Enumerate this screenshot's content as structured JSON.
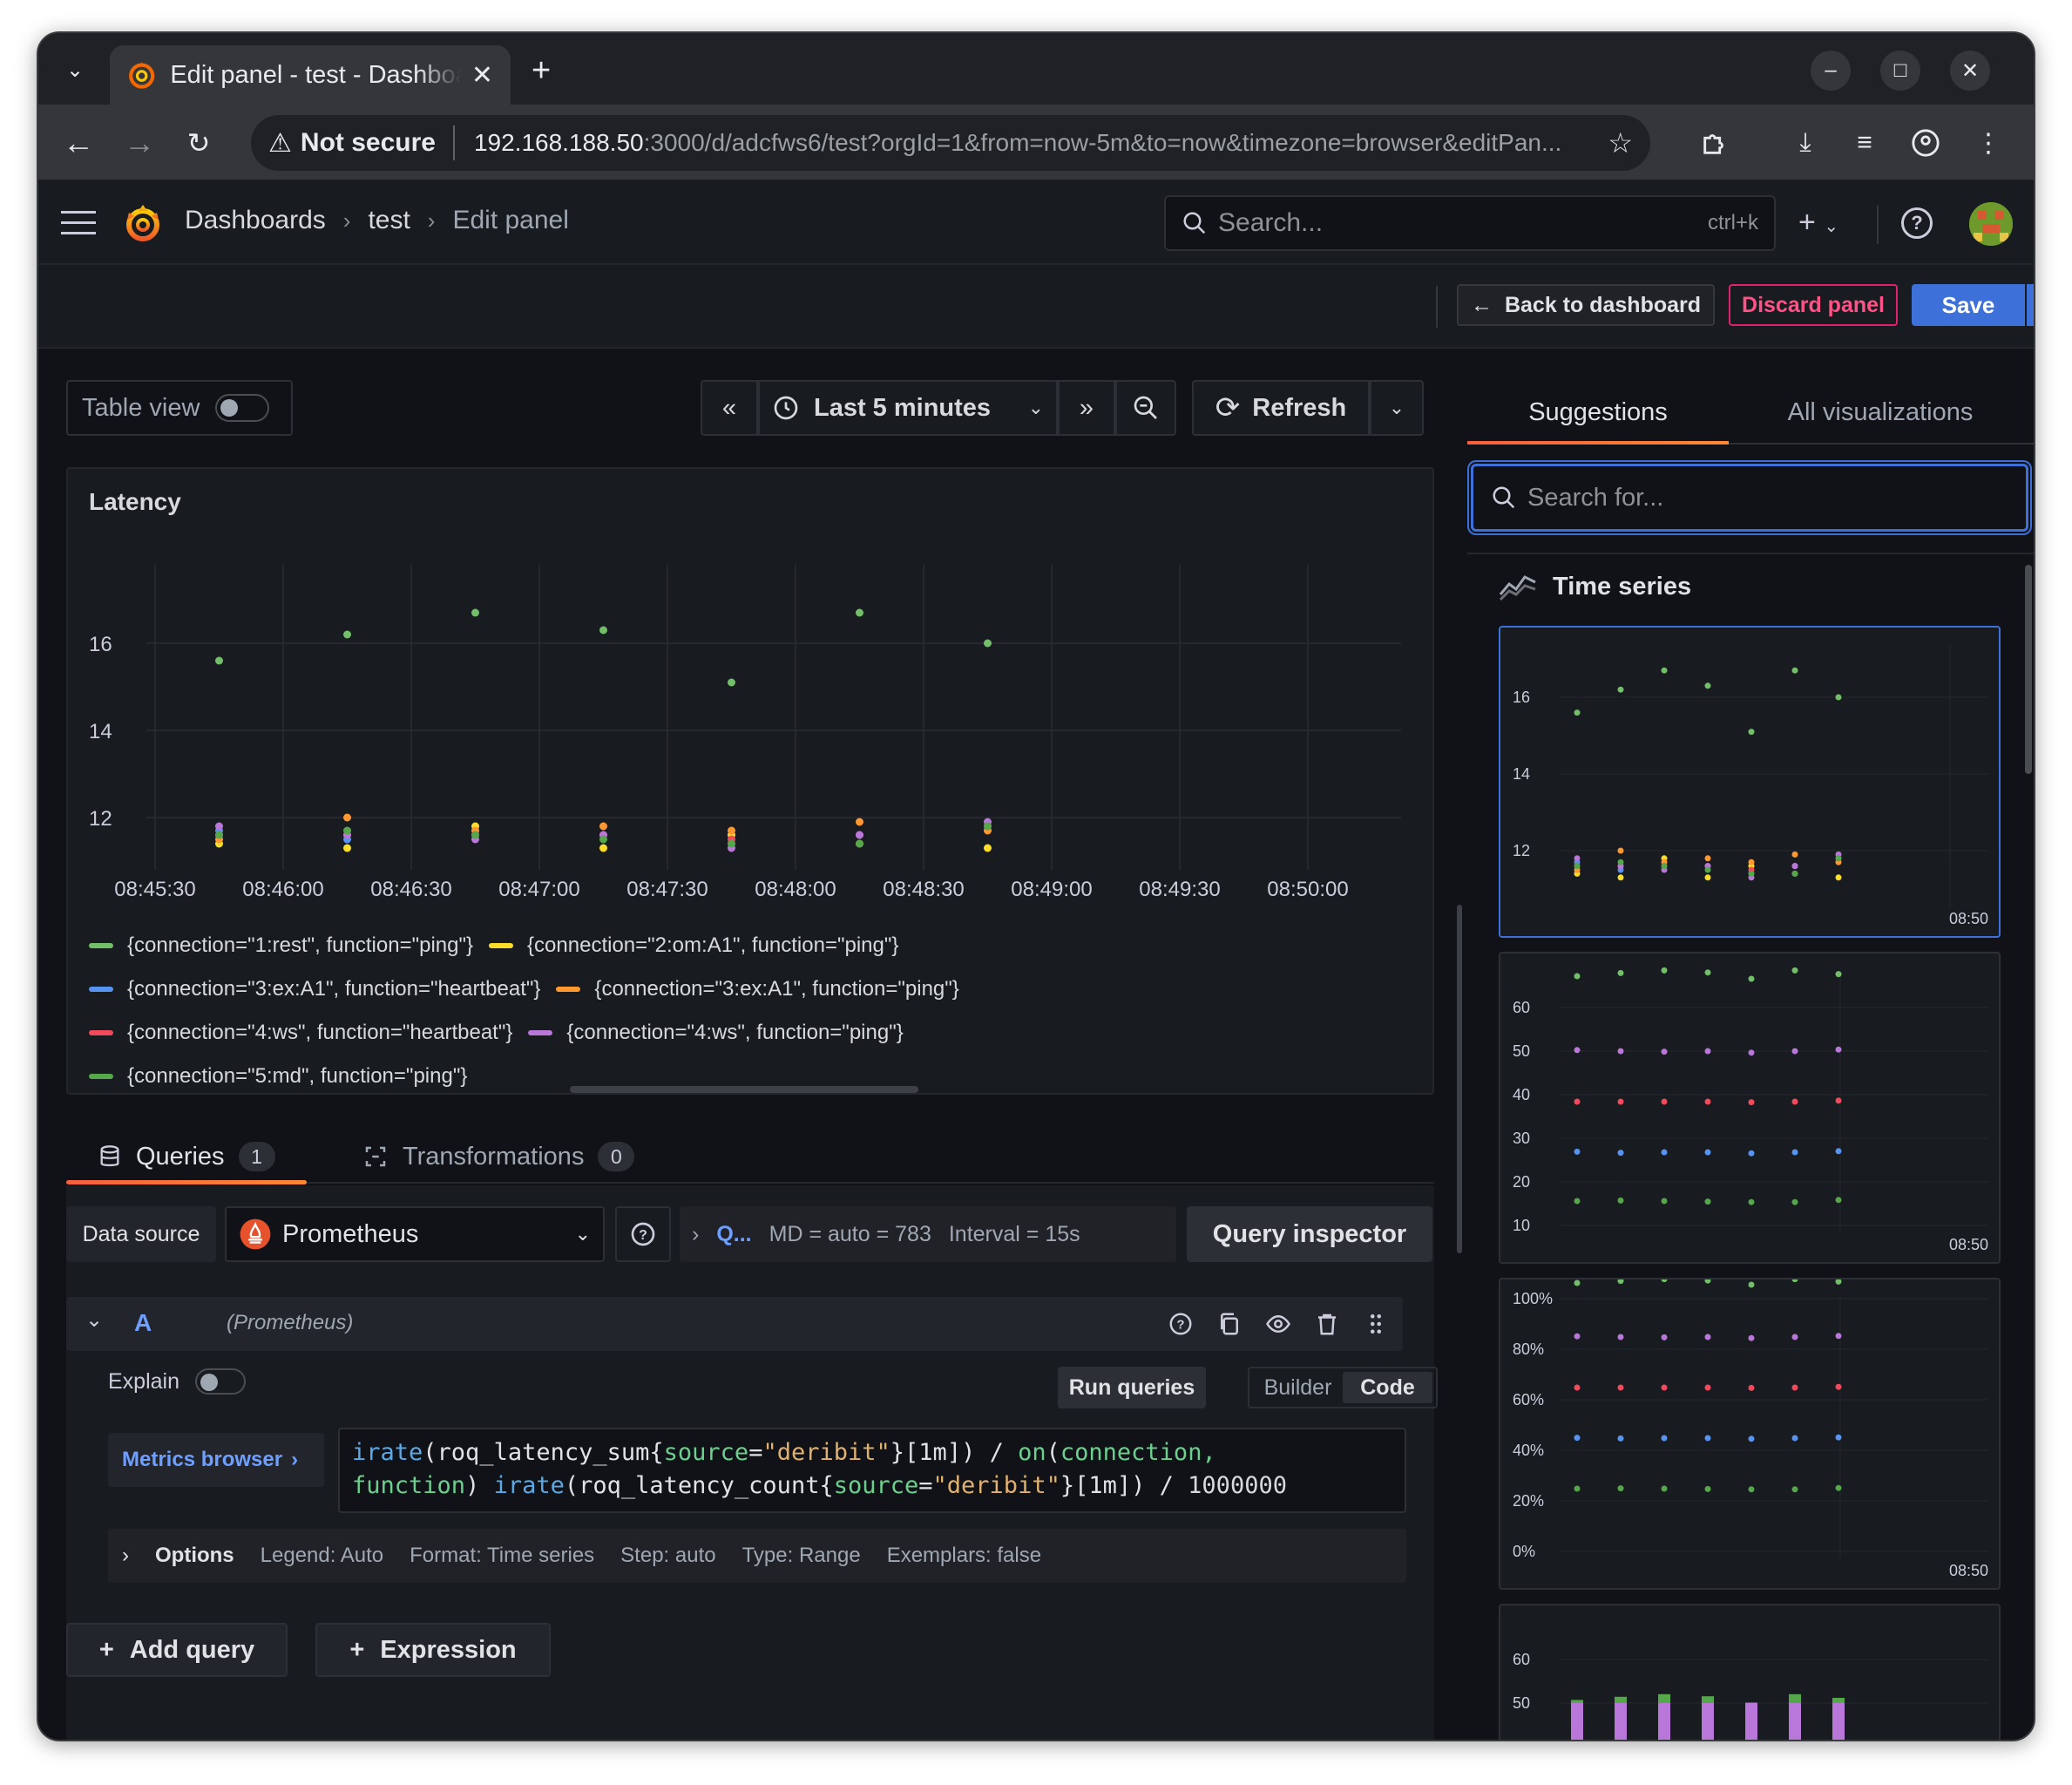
{
  "browser": {
    "tab_title": "Edit panel - test - Dashboards - Grafana",
    "not_secure_label": "Not secure",
    "url_host": "192.168.188.50",
    "url_rest": ":3000/d/adcfws6/test?orgId=1&from=now-5m&to=now&timezone=browser&editPan..."
  },
  "topbar": {
    "breadcrumb": [
      "Dashboards",
      "test",
      "Edit panel"
    ],
    "search_placeholder": "Search...",
    "search_shortcut": "ctrl+k"
  },
  "actions": {
    "back_label": "Back to dashboard",
    "discard_label": "Discard panel",
    "save_label": "Save"
  },
  "controls": {
    "table_view_label": "Table view",
    "time_range_label": "Last 5 minutes",
    "refresh_label": "Refresh"
  },
  "panel": {
    "title": "Latency"
  },
  "chart_data": {
    "type": "scatter",
    "title": "Latency",
    "x_tick_labels": [
      "08:45:30",
      "08:46:00",
      "08:46:30",
      "08:47:00",
      "08:47:30",
      "08:48:00",
      "08:48:30",
      "08:49:00",
      "08:49:30",
      "08:50:00"
    ],
    "y_tick_labels": [
      "12",
      "14",
      "16"
    ],
    "ylim": [
      10.8,
      17.8
    ],
    "grid": true,
    "legend_position": "bottom",
    "x": [
      "08:45:45",
      "08:46:15",
      "08:46:45",
      "08:47:15",
      "08:47:45",
      "08:48:15",
      "08:48:45"
    ],
    "series": [
      {
        "name": "{connection=\"1:rest\", function=\"ping\"}",
        "color": "#73bf69",
        "values": [
          15.6,
          16.2,
          16.7,
          16.3,
          15.1,
          16.7,
          16.0
        ]
      },
      {
        "name": "{connection=\"2:om:A1\", function=\"ping\"}",
        "color": "#fade2a",
        "values": [
          11.4,
          11.3,
          11.8,
          11.3,
          11.6,
          11.4,
          11.3
        ]
      },
      {
        "name": "{connection=\"3:ex:A1\", function=\"heartbeat\"}",
        "color": "#5794f2",
        "values": [
          11.7,
          11.5,
          11.6,
          11.6,
          11.4,
          11.6,
          11.8
        ]
      },
      {
        "name": "{connection=\"3:ex:A1\", function=\"ping\"}",
        "color": "#ff9830",
        "values": [
          11.5,
          12.0,
          11.7,
          11.8,
          11.7,
          11.9,
          11.7
        ]
      },
      {
        "name": "{connection=\"4:ws\", function=\"heartbeat\"}",
        "color": "#f2495c",
        "values": [
          11.6,
          11.6,
          11.6,
          11.6,
          11.5,
          11.6,
          11.8
        ]
      },
      {
        "name": "{connection=\"4:ws\", function=\"ping\"}",
        "color": "#b877d9",
        "values": [
          11.8,
          11.6,
          11.5,
          11.6,
          11.3,
          11.6,
          11.9
        ]
      },
      {
        "name": "{connection=\"5:md\", function=\"ping\"}",
        "color": "#56a64b",
        "values": [
          11.6,
          11.7,
          11.6,
          11.5,
          11.4,
          11.4,
          11.8
        ]
      }
    ]
  },
  "query_tabs": [
    {
      "label": "Queries",
      "count": "1"
    },
    {
      "label": "Transformations",
      "count": "0"
    }
  ],
  "query_options": {
    "data_source_label": "Data source",
    "data_source": "Prometheus",
    "options_short": "Q...",
    "md": "MD = auto = 783",
    "interval": "Interval = 15s",
    "inspector_label": "Query inspector"
  },
  "query_row": {
    "ref": "A",
    "ds": "(Prometheus)",
    "explain_label": "Explain",
    "run_label": "Run queries",
    "builder_label": "Builder",
    "code_label": "Code",
    "metrics_browser_label": "Metrics browser",
    "options_label": "Options",
    "options_summary": [
      "Legend: Auto",
      "Format: Time series",
      "Step: auto",
      "Type: Range",
      "Exemplars: false"
    ]
  },
  "query_code": {
    "fn1": "irate",
    "metric1": "roq_latency_sum",
    "label_key": "source",
    "label_value": "\"deribit\"",
    "range": "[1m]",
    "op_on": "on",
    "on_args1": "connection,",
    "on_args2": "function",
    "metric2": "roq_latency_count",
    "divisor": "1000000"
  },
  "add_buttons": {
    "add_query": "Add query",
    "expression": "Expression"
  },
  "viz": {
    "tab_suggestions": "Suggestions",
    "tab_all": "All visualizations",
    "search_placeholder": "Search for...",
    "section_title": "Time series",
    "card1_y_ticks": [
      "16",
      "14",
      "12"
    ],
    "card2_y_ticks": [
      "60",
      "50",
      "40",
      "30",
      "20",
      "10"
    ],
    "card3_y_ticks": [
      "100%",
      "80%",
      "60%",
      "40%",
      "20%",
      "0%"
    ],
    "card4_y_ticks": [
      "60",
      "50"
    ],
    "card_time_label": "08:50"
  },
  "colors": {
    "accent_blue": "#3d71d9",
    "discard_pink": "#ff5286",
    "tab_underline": "#ff8833"
  }
}
